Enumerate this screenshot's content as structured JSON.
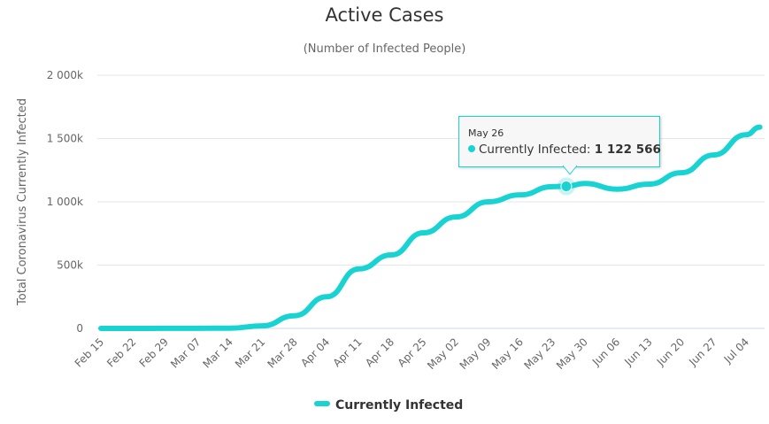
{
  "chart_data": {
    "type": "line",
    "title": "Active Cases",
    "subtitle": "(Number of Infected People)",
    "xlabel": "",
    "ylabel": "Total Coronavirus Currently Infected",
    "ylim": [
      0,
      2000000
    ],
    "yticks": [
      0,
      500000,
      1000000,
      1500000,
      2000000
    ],
    "ytick_labels": [
      "0",
      "500k",
      "1 000k",
      "1 500k",
      "2 000k"
    ],
    "xtick_labels": [
      "Feb 15",
      "Feb 22",
      "Feb 29",
      "Mar 07",
      "Mar 14",
      "Mar 21",
      "Mar 28",
      "Apr 04",
      "Apr 11",
      "Apr 18",
      "Apr 25",
      "May 02",
      "May 09",
      "May 16",
      "May 23",
      "May 30",
      "Jun 06",
      "Jun 13",
      "Jun 20",
      "Jun 27",
      "Jul 04"
    ],
    "grid": true,
    "legend": "bottom-center",
    "color": "#19d3d3",
    "series": [
      {
        "name": "Currently Infected",
        "x_days_from_feb15": [
          0,
          7,
          14,
          21,
          28,
          35,
          42,
          49,
          56,
          63,
          70,
          77,
          84,
          91,
          98,
          101,
          105,
          112,
          119,
          126,
          133,
          140,
          143
        ],
        "values": [
          0,
          0,
          500,
          1000,
          2000,
          20000,
          100000,
          250000,
          470000,
          580000,
          755000,
          880000,
          1000000,
          1055000,
          1120000,
          1122566,
          1145000,
          1100000,
          1140000,
          1230000,
          1370000,
          1530000,
          1590000
        ]
      }
    ],
    "tooltip": {
      "date": "May 26",
      "series": "Currently Infected:",
      "value": "1 122 566",
      "x_day": 101,
      "y": 1122566
    }
  }
}
